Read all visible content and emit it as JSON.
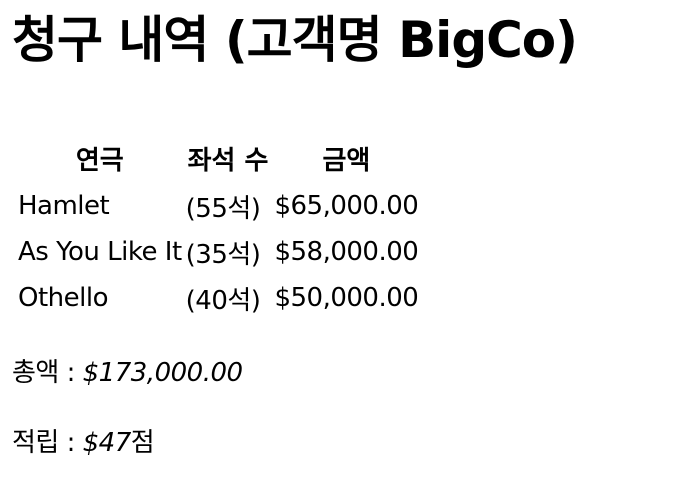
{
  "title": "청구 내역 (고객명 BigCo)",
  "table": {
    "headers": [
      "연극",
      "좌석 수",
      "금액"
    ],
    "rows": [
      {
        "play": "Hamlet",
        "seats": "(55석)",
        "amount": "$65,000.00"
      },
      {
        "play": "As You Like It",
        "seats": "(35석)",
        "amount": "$58,000.00"
      },
      {
        "play": "Othello",
        "seats": "(40석)",
        "amount": "$50,000.00"
      }
    ]
  },
  "total": {
    "label": "총액 : ",
    "value": "$173,000.00"
  },
  "credits": {
    "label": "적립 : ",
    "value": "$47",
    "suffix": "점"
  }
}
